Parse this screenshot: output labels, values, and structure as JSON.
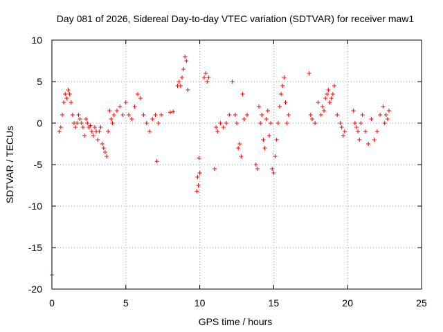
{
  "chart_data": {
    "type": "scatter",
    "title": "Day 081 of 2026, Sidereal Day-to-day VTEC variation (SDTVAR) for receiver maw1",
    "xlabel": "GPS time / hours",
    "ylabel": "SDTVAR / TECUs",
    "xlim": [
      0,
      25
    ],
    "ylim": [
      -20,
      10
    ],
    "xticks": [
      0,
      5,
      10,
      15,
      20,
      25
    ],
    "yticks": [
      -20,
      -15,
      -10,
      -5,
      0,
      5,
      10
    ],
    "xtick_labels": [
      "0",
      "5",
      "10",
      "15",
      "20",
      "25"
    ],
    "ytick_labels": [
      "-20",
      "-15",
      "-10",
      "-5",
      "0",
      "5",
      "10"
    ],
    "grid": true,
    "marker": "+",
    "series": [
      {
        "name": "SDTVAR",
        "color": "#ff0000",
        "x": [
          0.0,
          0.5,
          0.6,
          0.7,
          0.8,
          0.9,
          1.0,
          1.1,
          1.2,
          1.3,
          1.4,
          1.5,
          1.6,
          1.7,
          1.8,
          1.9,
          2.0,
          2.1,
          2.2,
          2.3,
          2.4,
          2.5,
          2.6,
          2.7,
          2.8,
          2.9,
          3.0,
          3.1,
          3.2,
          3.3,
          3.4,
          3.5,
          3.6,
          3.7,
          3.8,
          3.9,
          4.0,
          4.1,
          4.2,
          4.4,
          4.6,
          4.8,
          5.0,
          5.2,
          5.4,
          5.6,
          5.8,
          6.0,
          6.2,
          6.4,
          6.6,
          6.8,
          7.0,
          7.1,
          7.2,
          7.4,
          8.0,
          8.2,
          8.5,
          8.6,
          8.7,
          8.8,
          8.9,
          9.0,
          9.1,
          9.2,
          9.8,
          9.85,
          9.9,
          9.95,
          10.0,
          10.3,
          10.4,
          10.5,
          10.6,
          11.0,
          11.1,
          11.2,
          11.4,
          11.6,
          11.8,
          12.0,
          12.2,
          12.4,
          12.5,
          12.6,
          12.7,
          12.8,
          12.9,
          13.0,
          13.2,
          13.8,
          13.9,
          14.0,
          14.1,
          14.2,
          14.3,
          14.4,
          14.5,
          14.6,
          14.7,
          14.8,
          14.9,
          15.0,
          15.1,
          15.2,
          15.3,
          15.4,
          15.5,
          15.6,
          15.7,
          15.8,
          15.9,
          16.0,
          17.4,
          17.5,
          17.6,
          17.8,
          18.0,
          18.2,
          18.3,
          18.4,
          18.5,
          18.6,
          18.7,
          18.8,
          18.9,
          19.0,
          19.1,
          19.3,
          19.5,
          19.6,
          19.7,
          19.8,
          20.4,
          20.5,
          20.6,
          20.7,
          20.8,
          20.9,
          21.0,
          21.2,
          21.4,
          21.6,
          21.8,
          22.0,
          22.2,
          22.4,
          22.5,
          22.6,
          22.7,
          22.8
        ],
        "y": [
          -18.3,
          -1.0,
          -0.5,
          1.0,
          2.5,
          3.5,
          3.0,
          4.0,
          3.5,
          2.5,
          1.0,
          0.0,
          -0.5,
          0.0,
          1.0,
          0.5,
          0.0,
          -0.5,
          -1.5,
          0.5,
          0.0,
          -0.5,
          -0.3,
          -1.0,
          -1.5,
          -0.5,
          -1.0,
          -2.0,
          -1.0,
          -0.5,
          -2.5,
          -3.0,
          -3.5,
          -4.0,
          -1.0,
          1.5,
          0.5,
          0.0,
          1.0,
          1.5,
          2.0,
          1.0,
          2.5,
          1.0,
          0.5,
          2.0,
          3.5,
          3.0,
          1.0,
          0.0,
          -1.0,
          0.5,
          1.0,
          -4.6,
          0.0,
          1.0,
          1.3,
          1.4,
          4.5,
          5.0,
          4.5,
          5.5,
          6.5,
          8.0,
          7.5,
          4.0,
          -8.2,
          -6.5,
          -7.5,
          -4.2,
          -6.0,
          5.5,
          6.0,
          5.0,
          5.5,
          -5.5,
          -0.5,
          -1.0,
          0.0,
          -0.5,
          0.0,
          1.0,
          5.0,
          1.0,
          0.0,
          -3.0,
          -2.5,
          -4.0,
          3.5,
          0.5,
          1.0,
          -5.0,
          -5.5,
          2.0,
          0.0,
          1.0,
          -2.0,
          -3.0,
          0.5,
          1.5,
          -1.5,
          0.0,
          -5.5,
          -6.0,
          -4.0,
          -2.0,
          0.0,
          2.0,
          3.5,
          4.5,
          5.5,
          2.5,
          0.0,
          1.0,
          6.0,
          1.0,
          0.5,
          0.0,
          2.5,
          1.0,
          2.0,
          1.5,
          3.0,
          3.5,
          4.0,
          2.5,
          3.0,
          3.5,
          4.5,
          1.0,
          0.0,
          -0.5,
          -1.5,
          -1.0,
          1.5,
          0.0,
          -0.5,
          -1.0,
          -2.0,
          0.0,
          1.0,
          -1.0,
          -2.5,
          0.5,
          -2.0,
          -1.0,
          1.0,
          2.0,
          0.0,
          1.0,
          0.5,
          1.5
        ]
      }
    ]
  }
}
